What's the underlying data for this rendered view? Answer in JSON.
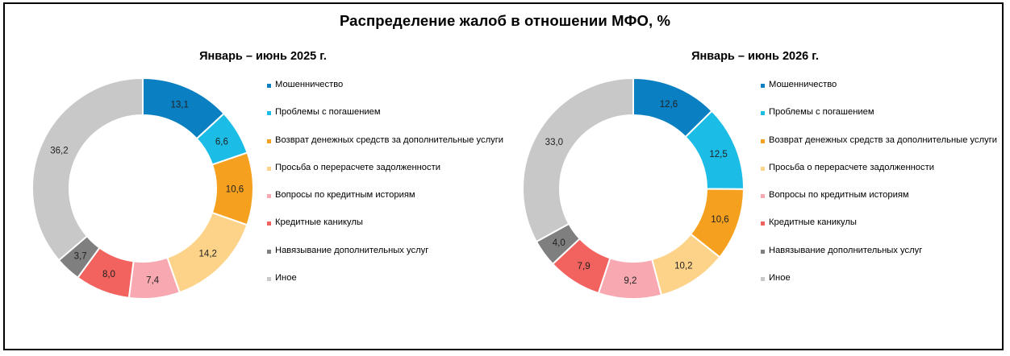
{
  "title": "Распределение жалоб в отношении МФО, %",
  "legend_labels": [
    "Мошенничество",
    "Проблемы с погашением",
    "Возврат денежных средств за дополнительные услуги",
    "Просьба о перерасчете задолженности",
    "Вопросы по кредитным историям",
    "Кредитные каникулы",
    "Навязывание дополнительных услуг",
    "Иное"
  ],
  "colors": [
    "#0a7fc2",
    "#1bbde6",
    "#f5a11f",
    "#fdd38a",
    "#f7a8b0",
    "#f2625e",
    "#7f7f7f",
    "#c8c8c8"
  ],
  "chart_data": [
    {
      "type": "pie",
      "title": "Январь – июнь 2025 г.",
      "categories": [
        "Мошенничество",
        "Проблемы с погашением",
        "Возврат денежных средств за дополнительные услуги",
        "Просьба о перерасчете задолженности",
        "Вопросы по кредитным историям",
        "Кредитные каникулы",
        "Навязывание дополнительных услуг",
        "Иное"
      ],
      "values": [
        13.1,
        6.6,
        10.6,
        14.2,
        7.4,
        8.0,
        3.7,
        36.2
      ],
      "value_labels": [
        "13,1",
        "6,6",
        "10,6",
        "14,2",
        "7,4",
        "8,0",
        "3,7",
        "36,2"
      ],
      "legend_position": "right"
    },
    {
      "type": "pie",
      "title": "Январь – июнь 2026 г.",
      "categories": [
        "Мошенничество",
        "Проблемы с погашением",
        "Возврат денежных средств за дополнительные услуги",
        "Просьба о перерасчете задолженности",
        "Вопросы по кредитным историям",
        "Кредитные каникулы",
        "Навязывание дополнительных услуг",
        "Иное"
      ],
      "values": [
        12.6,
        12.5,
        10.6,
        10.2,
        9.2,
        7.9,
        4.0,
        33.0
      ],
      "value_labels": [
        "12,6",
        "12,5",
        "10,6",
        "10,2",
        "9,2",
        "7,9",
        "4,0",
        "33,0"
      ],
      "legend_position": "right"
    }
  ]
}
